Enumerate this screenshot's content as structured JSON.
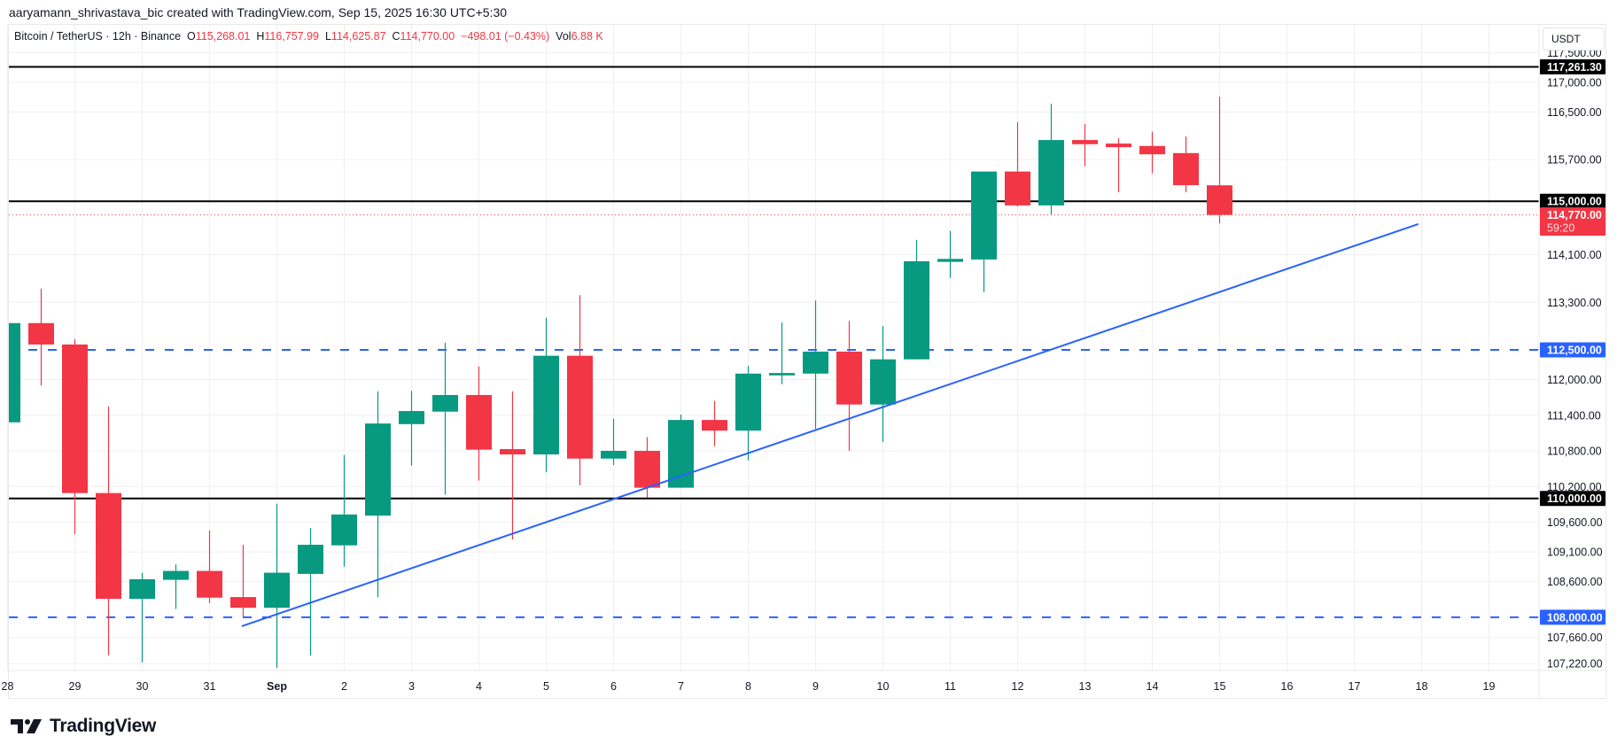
{
  "header": {
    "credit": "aaryamann_shrivastava_bic created with TradingView.com, Sep 15, 2025 16:30 UTC+5:30",
    "symbol": "Bitcoin / TetherUS · 12h · Binance",
    "o_label": "O",
    "o_value": "115,268.01",
    "h_label": "H",
    "h_value": "116,757.99",
    "l_label": "L",
    "l_value": "114,625.87",
    "c_label": "C",
    "c_value": "114,770.00",
    "change": "−498.01 (−0.43%)",
    "vol_label": "Vol",
    "vol_value": "6.88 K"
  },
  "currency": "USDT",
  "logo_text": "TradingView",
  "colors": {
    "up": "#089981",
    "down": "#f23645",
    "trend": "#2962ff",
    "level": "#000000",
    "grid": "#f0f0f0"
  },
  "chart_data": {
    "type": "candlestick",
    "title": "Bitcoin / TetherUS · 12h · Binance",
    "interval": "12h",
    "start": "Aug 28 00:00",
    "ohlc": [
      [
        111280,
        113000,
        111200,
        112950
      ],
      [
        112950,
        113530,
        111900,
        112590
      ],
      [
        112590,
        112680,
        109400,
        110090
      ],
      [
        110090,
        111550,
        107360,
        108310
      ],
      [
        108310,
        108750,
        107240,
        108640
      ],
      [
        108630,
        108890,
        108140,
        108780
      ],
      [
        108780,
        109460,
        108240,
        108330
      ],
      [
        108340,
        109220,
        108010,
        108160
      ],
      [
        108160,
        109910,
        107150,
        108750
      ],
      [
        108730,
        109500,
        107360,
        109220
      ],
      [
        109210,
        110730,
        108850,
        109730
      ],
      [
        109710,
        111800,
        108340,
        111260
      ],
      [
        111250,
        111810,
        110550,
        111470
      ],
      [
        111460,
        112620,
        110060,
        111740
      ],
      [
        111740,
        112220,
        110300,
        110820
      ],
      [
        110830,
        111800,
        109310,
        110740
      ],
      [
        110740,
        113040,
        110440,
        112400
      ],
      [
        112400,
        113420,
        110220,
        110670
      ],
      [
        110670,
        111340,
        110560,
        110800
      ],
      [
        110800,
        111030,
        110010,
        110180
      ],
      [
        110180,
        111410,
        110180,
        111320
      ],
      [
        111320,
        111640,
        110880,
        111140
      ],
      [
        111140,
        112230,
        110640,
        112100
      ],
      [
        112070,
        112960,
        111920,
        112110
      ],
      [
        112100,
        113330,
        111170,
        112470
      ],
      [
        112470,
        112990,
        110800,
        111580
      ],
      [
        111580,
        112900,
        110950,
        112340
      ],
      [
        112340,
        114350,
        112340,
        113990
      ],
      [
        113980,
        114500,
        113710,
        114030
      ],
      [
        114020,
        115500,
        113470,
        115500
      ],
      [
        115500,
        116330,
        114910,
        114930
      ],
      [
        114930,
        116640,
        114770,
        116030
      ],
      [
        116030,
        116300,
        115590,
        115960
      ],
      [
        115970,
        116060,
        115150,
        115910
      ],
      [
        115930,
        116170,
        115470,
        115790
      ],
      [
        115810,
        116090,
        115150,
        115270
      ],
      [
        115268.01,
        116757.99,
        114625.87,
        114770.0
      ]
    ],
    "x_ticks": [
      "28",
      "29",
      "30",
      "31",
      "Sep",
      "2",
      "3",
      "4",
      "5",
      "6",
      "7",
      "8",
      "9",
      "10",
      "11",
      "12",
      "13",
      "14",
      "15",
      "16",
      "17",
      "18",
      "19"
    ],
    "y_ticks": [
      117500,
      117000,
      116500,
      115700,
      114100,
      113300,
      112000,
      111400,
      110800,
      110200,
      109600,
      109100,
      108600,
      107660,
      107220
    ],
    "y_tick_labels": [
      "117,500.00",
      "117,000.00",
      "116,500.00",
      "115,700.00",
      "114,100.00",
      "113,300.00",
      "112,000.00",
      "111,400.00",
      "110,800.00",
      "110,200.00",
      "109,600.00",
      "109,100.00",
      "108,600.00",
      "107,660.00",
      "107,220.00"
    ],
    "levels": [
      {
        "price": 117261.3,
        "label": "117,261.30",
        "style": "solid",
        "color": "#000000"
      },
      {
        "price": 115000,
        "label": "115,000.00",
        "style": "solid",
        "color": "#000000"
      },
      {
        "price": 112500,
        "label": "112,500.00",
        "style": "dashed",
        "color": "#2962ff"
      },
      {
        "price": 110000,
        "label": "110,000.00",
        "style": "solid",
        "color": "#000000"
      },
      {
        "price": 108000,
        "label": "108,000.00",
        "style": "dashed",
        "color": "#2962ff"
      }
    ],
    "last_price": {
      "price": 114770.0,
      "label": "114,770.00",
      "countdown": "59:20"
    },
    "trendline": {
      "from": {
        "bar": 6.96,
        "price": 107850
      },
      "to": {
        "bar": 41.9,
        "price": 114616
      }
    }
  }
}
